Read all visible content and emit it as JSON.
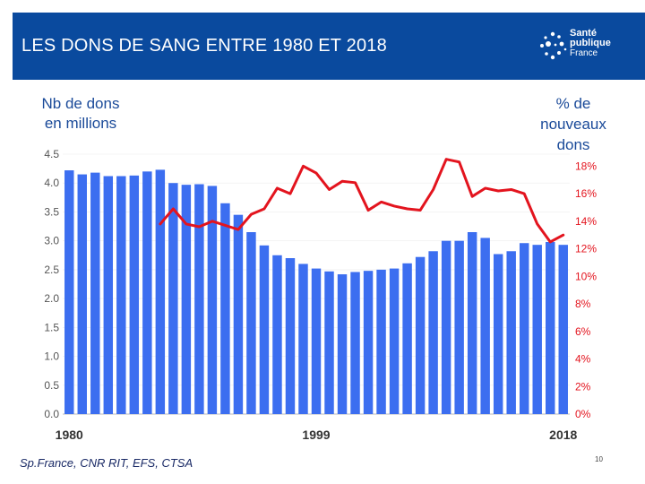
{
  "slide": {
    "title": "LES DONS DE SANG ENTRE 1980 ET 2018",
    "logo": {
      "line1": "Santé",
      "line2": "publique",
      "line3": "France"
    },
    "source": "Sp.France, CNR RIT,  EFS, CTSA",
    "page_number": "10"
  },
  "axis_titles": {
    "left": [
      "Nb de dons",
      "en millions"
    ],
    "right": [
      "% de",
      "nouveaux",
      "dons"
    ]
  },
  "colors": {
    "header": "#0a4a9e",
    "bars": "#3c6ef0",
    "line": "#e3141e",
    "right_axis_text": "#e3141e"
  },
  "chart_data": {
    "type": "bar+line",
    "title": "LES DONS DE SANG ENTRE 1980 ET 2018",
    "x_tick_labels": [
      "1980",
      "1999",
      "2018"
    ],
    "categories": [
      1980,
      1981,
      1982,
      1983,
      1984,
      1985,
      1986,
      1987,
      1988,
      1989,
      1990,
      1991,
      1992,
      1993,
      1994,
      1995,
      1996,
      1997,
      1998,
      1999,
      2000,
      2001,
      2002,
      2003,
      2004,
      2005,
      2006,
      2007,
      2008,
      2009,
      2010,
      2011,
      2012,
      2013,
      2014,
      2015,
      2016,
      2017,
      2018
    ],
    "left_axis": {
      "label": "Nb de dons en millions",
      "ylim": [
        0,
        4.5
      ],
      "ticks": [
        "0.0",
        "0.5",
        "1.0",
        "1.5",
        "2.0",
        "2.5",
        "3.0",
        "3.5",
        "4.0",
        "4.5"
      ]
    },
    "right_axis": {
      "label": "% de nouveaux dons",
      "ylim": [
        0,
        19
      ],
      "ticks": [
        "0%",
        "2%",
        "4%",
        "6%",
        "8%",
        "10%",
        "12%",
        "14%",
        "16%",
        "18%"
      ]
    },
    "series": [
      {
        "name": "Nb de dons (millions)",
        "type": "bar",
        "axis": "left",
        "values": [
          4.22,
          4.15,
          4.18,
          4.12,
          4.12,
          4.13,
          4.2,
          4.23,
          4.0,
          3.97,
          3.98,
          3.95,
          3.65,
          3.45,
          3.15,
          2.92,
          2.75,
          2.7,
          2.6,
          2.52,
          2.47,
          2.42,
          2.46,
          2.48,
          2.5,
          2.52,
          2.61,
          2.72,
          2.82,
          3.0,
          3.0,
          3.15,
          3.05,
          2.77,
          2.82,
          2.96,
          2.93,
          2.98,
          2.93
        ]
      },
      {
        "name": "% de nouveaux dons",
        "type": "line",
        "axis": "right",
        "x": [
          1987,
          1988,
          1989,
          1990,
          1991,
          1992,
          1993,
          1994,
          1995,
          1996,
          1997,
          1998,
          1999,
          2000,
          2001,
          2002,
          2003,
          2004,
          2005,
          2006,
          2007,
          2008,
          2009,
          2010,
          2011,
          2012,
          2013,
          2014,
          2015,
          2016,
          2017,
          2018
        ],
        "values": [
          13.8,
          14.9,
          13.8,
          13.6,
          14.0,
          13.7,
          13.4,
          14.5,
          14.9,
          16.4,
          16.0,
          18.0,
          17.5,
          16.3,
          16.9,
          16.8,
          14.8,
          15.4,
          15.1,
          14.9,
          14.8,
          16.3,
          18.5,
          18.3,
          15.8,
          16.4,
          16.2,
          16.3,
          16.0,
          13.8,
          12.5,
          13.0
        ]
      }
    ]
  }
}
